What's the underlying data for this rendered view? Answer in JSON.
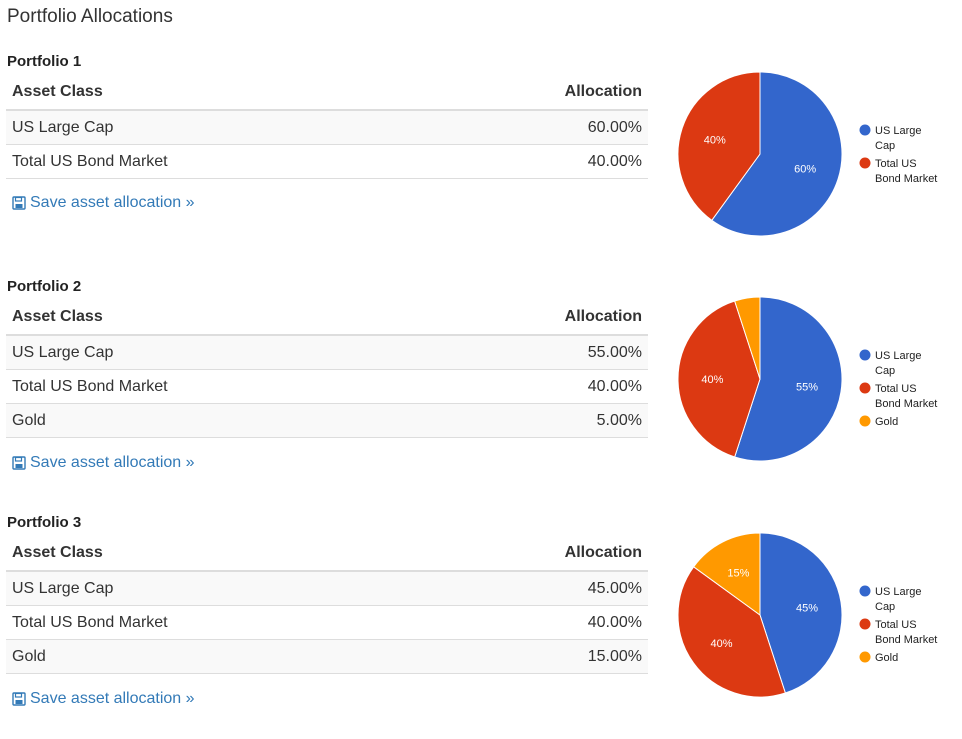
{
  "page": {
    "title": "Portfolio Allocations"
  },
  "table_headers": {
    "asset_class": "Asset Class",
    "allocation": "Allocation"
  },
  "save_link_label": "Save asset allocation »",
  "colors": {
    "us_large_cap": "#3366cc",
    "total_us_bond": "#dc3912",
    "gold": "#ff9900",
    "link": "#337ab7"
  },
  "portfolios": [
    {
      "title": "Portfolio 1",
      "rows": [
        {
          "asset": "US Large Cap",
          "allocation": "60.00%"
        },
        {
          "asset": "Total US Bond Market",
          "allocation": "40.00%"
        }
      ]
    },
    {
      "title": "Portfolio 2",
      "rows": [
        {
          "asset": "US Large Cap",
          "allocation": "55.00%"
        },
        {
          "asset": "Total US Bond Market",
          "allocation": "40.00%"
        },
        {
          "asset": "Gold",
          "allocation": "5.00%"
        }
      ]
    },
    {
      "title": "Portfolio 3",
      "rows": [
        {
          "asset": "US Large Cap",
          "allocation": "45.00%"
        },
        {
          "asset": "Total US Bond Market",
          "allocation": "40.00%"
        },
        {
          "asset": "Gold",
          "allocation": "15.00%"
        }
      ]
    }
  ],
  "chart_data": [
    {
      "type": "pie",
      "title": "Portfolio 1",
      "legend_position": "right",
      "categories": [
        "US Large Cap",
        "Total US Bond Market"
      ],
      "legend_lines": [
        [
          "US Large",
          "Cap"
        ],
        [
          "Total US",
          "Bond Market"
        ]
      ],
      "values": [
        60,
        40
      ],
      "labels": [
        "60%",
        "40%"
      ],
      "colors": [
        "#3366cc",
        "#dc3912"
      ]
    },
    {
      "type": "pie",
      "title": "Portfolio 2",
      "legend_position": "right",
      "categories": [
        "US Large Cap",
        "Total US Bond Market",
        "Gold"
      ],
      "legend_lines": [
        [
          "US Large",
          "Cap"
        ],
        [
          "Total US",
          "Bond Market"
        ],
        [
          "Gold"
        ]
      ],
      "values": [
        55,
        40,
        5
      ],
      "labels": [
        "55%",
        "40%",
        ""
      ],
      "colors": [
        "#3366cc",
        "#dc3912",
        "#ff9900"
      ]
    },
    {
      "type": "pie",
      "title": "Portfolio 3",
      "legend_position": "right",
      "categories": [
        "US Large Cap",
        "Total US Bond Market",
        "Gold"
      ],
      "legend_lines": [
        [
          "US Large",
          "Cap"
        ],
        [
          "Total US",
          "Bond Market"
        ],
        [
          "Gold"
        ]
      ],
      "values": [
        45,
        40,
        15
      ],
      "labels": [
        "45%",
        "40%",
        "15%"
      ],
      "colors": [
        "#3366cc",
        "#dc3912",
        "#ff9900"
      ]
    }
  ]
}
